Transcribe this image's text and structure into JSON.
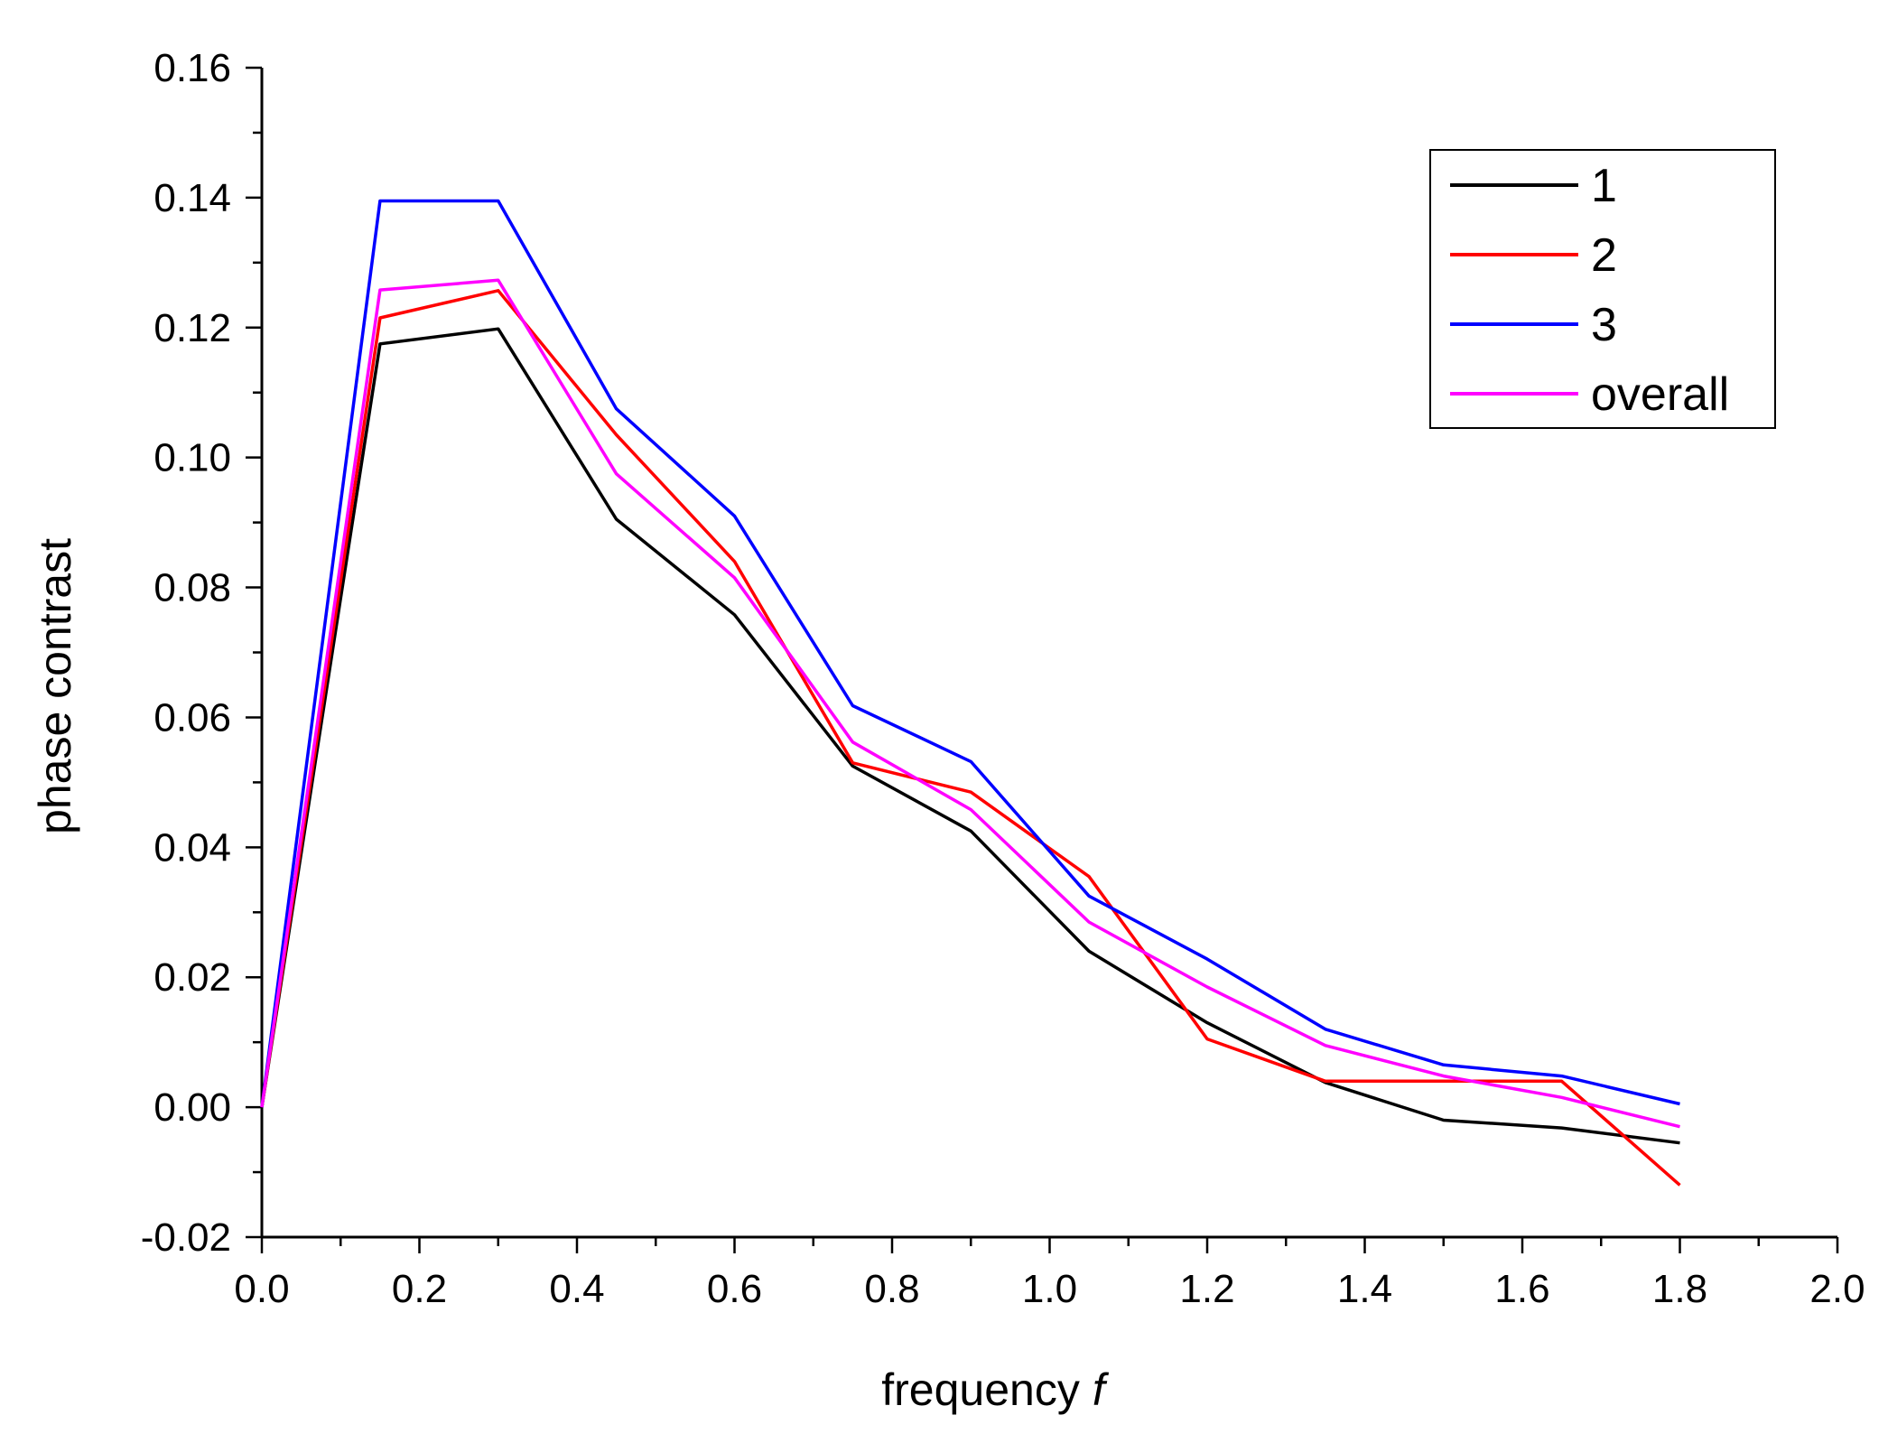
{
  "chart_data": {
    "type": "line",
    "title": "",
    "xlabel": "frequency",
    "xlabel_var": "f",
    "ylabel": "phase contrast",
    "xlim": [
      0.0,
      2.0
    ],
    "ylim": [
      -0.02,
      0.16
    ],
    "xticks": [
      "0.0",
      "0.2",
      "0.4",
      "0.6",
      "0.8",
      "1.0",
      "1.2",
      "1.4",
      "1.6",
      "1.8",
      "2.0"
    ],
    "yticks": [
      "-0.02",
      "0.00",
      "0.02",
      "0.04",
      "0.06",
      "0.08",
      "0.10",
      "0.12",
      "0.14",
      "0.16"
    ],
    "grid": false,
    "legend_position": "top-right",
    "x": [
      0.0,
      0.15,
      0.3,
      0.45,
      0.6,
      0.75,
      0.9,
      1.05,
      1.2,
      1.35,
      1.5,
      1.65,
      1.8
    ],
    "series": [
      {
        "name": "1",
        "color": "#000000",
        "values": [
          0.0,
          0.1175,
          0.1198,
          0.0905,
          0.0758,
          0.0525,
          0.0425,
          0.024,
          0.013,
          0.0038,
          -0.002,
          -0.0032,
          -0.0055
        ]
      },
      {
        "name": "2",
        "color": "#ff0000",
        "values": [
          0.0,
          0.1215,
          0.1257,
          0.1035,
          0.084,
          0.053,
          0.0485,
          0.0355,
          0.0105,
          0.004,
          0.004,
          0.004,
          -0.012
        ]
      },
      {
        "name": "3",
        "color": "#0000ff",
        "values": [
          0.0,
          0.1395,
          0.1395,
          0.1075,
          0.091,
          0.0618,
          0.0532,
          0.0325,
          0.0228,
          0.012,
          0.0065,
          0.0048,
          0.0005
        ]
      },
      {
        "name": "overall",
        "color": "#ff00ff",
        "values": [
          0.0,
          0.1258,
          0.1273,
          0.0975,
          0.0815,
          0.0562,
          0.0458,
          0.0285,
          0.0185,
          0.0095,
          0.0048,
          0.0015,
          -0.003
        ]
      }
    ]
  }
}
